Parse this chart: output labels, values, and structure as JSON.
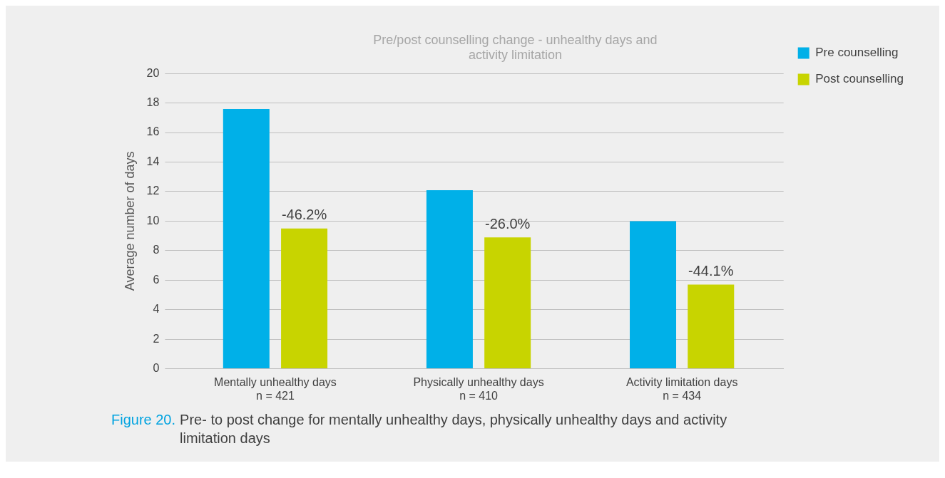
{
  "chart_data": {
    "type": "bar",
    "title": "Pre/post counselling change - unhealthy days and activity limitation",
    "ylabel": "Average number of days",
    "categories": [
      "Mentally unhealthy days\nn = 421",
      "Physically unhealthy days\nn = 410",
      "Activity limitation days\nn = 434"
    ],
    "series": [
      {
        "name": "Pre counselling",
        "color": "#00b0e8",
        "values": [
          17.6,
          12.1,
          10.0
        ]
      },
      {
        "name": "Post counselling",
        "color": "#c8d400",
        "values": [
          9.5,
          8.9,
          5.7
        ]
      }
    ],
    "ylim": [
      0,
      20
    ],
    "yticks": [
      0,
      2,
      4,
      6,
      8,
      10,
      12,
      14,
      16,
      18,
      20
    ],
    "grid": "y",
    "legend": "top right",
    "annotations": [
      "-46.2%",
      "-26.0%",
      "-44.1%",
      "Figure 20.",
      "Pre- to post change for mentally unhealthy days, physically unhealthy days and activity limitation days"
    ]
  }
}
